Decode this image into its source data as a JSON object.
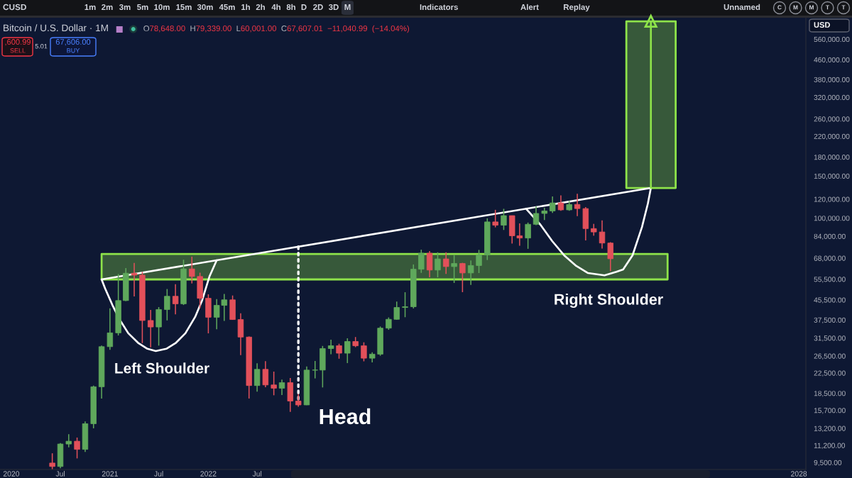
{
  "chart_data": {
    "type": "candlestick",
    "title": "Bitcoin / U.S. Dollar · 1M",
    "subtitle": "O78,648.00 H79,339.00 L60,001.00 C67,607.01 −11,040.99 (−14.04%)",
    "x": [
      "2020-06",
      "2020-07",
      "2020-08",
      "2020-09",
      "2020-10",
      "2020-11",
      "2020-12",
      "2021-01",
      "2021-02",
      "2021-03",
      "2021-04",
      "2021-05",
      "2021-06",
      "2021-07",
      "2021-08",
      "2021-09",
      "2021-10",
      "2021-11",
      "2021-12",
      "2022-01",
      "2022-02",
      "2022-03",
      "2022-04",
      "2022-05",
      "2022-06",
      "2022-07",
      "2022-08",
      "2022-09",
      "2022-10",
      "2022-11",
      "2022-12",
      "2023-01",
      "2023-02",
      "2023-03",
      "2023-04",
      "2023-05",
      "2023-06",
      "2023-07",
      "2023-08",
      "2023-09",
      "2023-10",
      "2023-11",
      "2023-12",
      "2024-01",
      "2024-02",
      "2024-03",
      "2024-04",
      "2024-05",
      "2024-06",
      "2024-07",
      "2024-08",
      "2024-09",
      "2024-10",
      "2024-11",
      "2024-12",
      "2025-01",
      "2025-02",
      "2025-03",
      "2025-04",
      "2025-05",
      "2025-06",
      "2025-07",
      "2025-08",
      "2025-09",
      "2025-10",
      "2025-11",
      "2025-12",
      "2026-01",
      "2026-02"
    ],
    "ohlc": [
      [
        9450,
        10380,
        8910,
        9140
      ],
      [
        9140,
        11450,
        8980,
        11350
      ],
      [
        11350,
        12480,
        10990,
        11660
      ],
      [
        11660,
        12080,
        9880,
        10780
      ],
      [
        10780,
        14100,
        10520,
        13800
      ],
      [
        13800,
        19920,
        13200,
        19700
      ],
      [
        19700,
        29300,
        17570,
        28990
      ],
      [
        28990,
        41950,
        28130,
        33110
      ],
      [
        33110,
        58350,
        32300,
        45200
      ],
      [
        45200,
        61780,
        44950,
        58800
      ],
      [
        58800,
        64900,
        47000,
        57750
      ],
      [
        57750,
        59600,
        30000,
        37300
      ],
      [
        37300,
        41330,
        28800,
        35040
      ],
      [
        35040,
        42450,
        29280,
        41460
      ],
      [
        41460,
        50500,
        37330,
        47100
      ],
      [
        47100,
        52920,
        39600,
        43800
      ],
      [
        43800,
        67000,
        43300,
        61300
      ],
      [
        61300,
        69000,
        53300,
        57000
      ],
      [
        57000,
        59100,
        42000,
        46200
      ],
      [
        46200,
        47990,
        32950,
        38480
      ],
      [
        38480,
        45850,
        34300,
        43160
      ],
      [
        43160,
        48200,
        37160,
        45510
      ],
      [
        45510,
        47450,
        37580,
        37640
      ],
      [
        37640,
        40000,
        26700,
        31800
      ],
      [
        31800,
        31990,
        17590,
        19930
      ],
      [
        19930,
        24700,
        18780,
        23300
      ],
      [
        23300,
        25200,
        19600,
        20050
      ],
      [
        20050,
        22800,
        18150,
        19430
      ],
      [
        19430,
        21100,
        18200,
        20490
      ],
      [
        20490,
        21450,
        15480,
        17170
      ],
      [
        17170,
        18390,
        16260,
        16540
      ],
      [
        16540,
        23960,
        16500,
        23130
      ],
      [
        23130,
        25250,
        21350,
        23140
      ],
      [
        23140,
        29190,
        19570,
        28470
      ],
      [
        28470,
        31000,
        26940,
        29250
      ],
      [
        29250,
        29820,
        25810,
        27220
      ],
      [
        27220,
        31430,
        24750,
        30470
      ],
      [
        30470,
        31810,
        28860,
        29230
      ],
      [
        29230,
        30230,
        25170,
        25940
      ],
      [
        25940,
        27480,
        24900,
        26970
      ],
      [
        26970,
        35200,
        26560,
        34650
      ],
      [
        34650,
        38420,
        34100,
        37720
      ],
      [
        37720,
        44730,
        37600,
        42280
      ],
      [
        42280,
        48970,
        38500,
        42580
      ],
      [
        42580,
        64000,
        41880,
        61130
      ],
      [
        61130,
        73780,
        59000,
        71330
      ],
      [
        71330,
        72800,
        56500,
        60640
      ],
      [
        60640,
        71950,
        56550,
        67490
      ],
      [
        67490,
        71980,
        58400,
        62700
      ],
      [
        62700,
        70000,
        53550,
        64620
      ],
      [
        64620,
        65000,
        49000,
        58970
      ],
      [
        58970,
        66500,
        52550,
        63330
      ],
      [
        63330,
        73620,
        58900,
        70220
      ],
      [
        70220,
        99800,
        66800,
        96400
      ],
      [
        96400,
        108300,
        91500,
        93400
      ],
      [
        93400,
        109350,
        89200,
        102400
      ],
      [
        102400,
        102500,
        78250,
        84350
      ],
      [
        84350,
        95000,
        76600,
        82550
      ],
      [
        82550,
        95800,
        74400,
        94200
      ],
      [
        94200,
        111900,
        93400,
        104600
      ],
      [
        104600,
        110500,
        98200,
        107150
      ],
      [
        107150,
        123200,
        105100,
        115750
      ],
      [
        115750,
        124500,
        107300,
        108250
      ],
      [
        108250,
        117900,
        107300,
        114050
      ],
      [
        114050,
        126300,
        102000,
        109600
      ],
      [
        109600,
        111200,
        80600,
        90400
      ],
      [
        90400,
        94600,
        84400,
        87500
      ],
      [
        87500,
        97900,
        74600,
        78650
      ],
      [
        78648,
        79339,
        60001,
        67607.01
      ]
    ],
    "colors": [
      "#e2505a",
      "#5fa85c",
      "#5fa85c",
      "#e2505a",
      "#5fa85c",
      "#5fa85c",
      "#5fa85c",
      "#5fa85c",
      "#5fa85c",
      "#5fa85c",
      "#e2505a",
      "#e2505a",
      "#e2505a",
      "#5fa85c",
      "#5fa85c",
      "#e2505a",
      "#5fa85c",
      "#e2505a",
      "#e2505a",
      "#e2505a",
      "#5fa85c",
      "#5fa85c",
      "#e2505a",
      "#e2505a",
      "#e2505a",
      "#5fa85c",
      "#e2505a",
      "#e2505a",
      "#5fa85c",
      "#e2505a",
      "#e2505a",
      "#5fa85c",
      "#5fa85c",
      "#5fa85c",
      "#5fa85c",
      "#e2505a",
      "#5fa85c",
      "#e2505a",
      "#e2505a",
      "#5fa85c",
      "#5fa85c",
      "#5fa85c",
      "#5fa85c",
      "#5fa85c",
      "#5fa85c",
      "#5fa85c",
      "#e2505a",
      "#5fa85c",
      "#e2505a",
      "#5fa85c",
      "#e2505a",
      "#5fa85c",
      "#5fa85c",
      "#5fa85c",
      "#e2505a",
      "#5fa85c",
      "#e2505a",
      "#e2505a",
      "#5fa85c",
      "#5fa85c",
      "#5fa85c",
      "#5fa85c",
      "#e2505a",
      "#5fa85c",
      "#e2505a",
      "#e2505a",
      "#e2505a",
      "#e2505a",
      "#e2505a"
    ],
    "xlim": [
      "2019-11-20",
      "2028-01-27"
    ],
    "xticks": [
      {
        "value": "2020-01",
        "label": "2020"
      },
      {
        "value": "2020-07",
        "label": "Jul"
      },
      {
        "value": "2021-01",
        "label": "2021"
      },
      {
        "value": "2021-07",
        "label": "Jul"
      },
      {
        "value": "2022-01",
        "label": "2022"
      },
      {
        "value": "2022-07",
        "label": "Jul"
      },
      {
        "value": "2028-01",
        "label": "2028"
      }
    ],
    "ylim": [
      8880,
      689000
    ],
    "yticks": [
      {
        "value": 9500,
        "label": "9,500.00"
      },
      {
        "value": 11200,
        "label": "11,200.00"
      },
      {
        "value": 13200,
        "label": "13,200.00"
      },
      {
        "value": 15700,
        "label": "15,700.00"
      },
      {
        "value": 18500,
        "label": "18,500.00"
      },
      {
        "value": 22500,
        "label": "22,500.00"
      },
      {
        "value": 26500,
        "label": "26,500.00"
      },
      {
        "value": 31500,
        "label": "31,500.00"
      },
      {
        "value": 37500,
        "label": "37,500.00"
      },
      {
        "value": 45500,
        "label": "45,500.00"
      },
      {
        "value": 55500,
        "label": "55,500.00"
      },
      {
        "value": 68000,
        "label": "68,000.00"
      },
      {
        "value": 84000,
        "label": "84,000.00"
      },
      {
        "value": 100000,
        "label": "100,000.00"
      },
      {
        "value": 120000,
        "label": "120,000.00"
      },
      {
        "value": 150000,
        "label": "150,000.00"
      },
      {
        "value": 180000,
        "label": "180,000.00"
      },
      {
        "value": 220000,
        "label": "220,000.00"
      },
      {
        "value": 260000,
        "label": "260,000.00"
      },
      {
        "value": 320000,
        "label": "320,000.00"
      },
      {
        "value": 380000,
        "label": "380,000.00"
      },
      {
        "value": 460000,
        "label": "460,000.00"
      },
      {
        "value": 560000,
        "label": "560,000.00"
      }
    ],
    "log": true,
    "series": [
      {
        "type": "line",
        "x": [
          "2020-12",
          "2026-09"
        ],
        "values": [
          null,
          null
        ],
        "lower": [
          55400,
          55400
        ],
        "upper": [
          70800,
          70800
        ],
        "color": "#8ee34a"
      },
      {
        "type": "line",
        "x": [
          "2026-04",
          "2026-10"
        ],
        "values": [
          null,
          null
        ],
        "lower": [
          133700,
          133700
        ],
        "upper": [
          665800,
          665800
        ],
        "color": "#8ee34a"
      },
      {
        "type": "line",
        "x": [
          "2020-12",
          "2026-07"
        ],
        "values": [
          55400,
          133700
        ],
        "color": "#ffffff"
      },
      {
        "type": "line",
        "x": [
          "2020-12-01",
          "2020-12-14",
          "2021-01-10",
          "2021-02-05",
          "2021-03-10",
          "2021-04-15",
          "2021-05-20",
          "2021-06-20",
          "2021-07-29",
          "2021-09-03",
          "2021-10-08",
          "2021-11-13",
          "2021-12-09",
          "2022-01-05",
          "2022-02-01"
        ],
        "values": [
          55400,
          50800,
          43300,
          37800,
          33000,
          30100,
          28400,
          27800,
          28400,
          30100,
          33000,
          38600,
          45300,
          56900,
          66600
        ],
        "color": "#ffffff"
      },
      {
        "type": "line",
        "x": [
          "2025-03-25",
          "2025-05-17",
          "2025-06-30",
          "2025-08-13",
          "2025-09-27",
          "2025-11-10",
          "2026-01-10",
          "2026-02-23",
          "2026-03-20",
          "2026-04-24",
          "2026-05-29",
          "2026-06-20",
          "2026-07-01"
        ],
        "values": [
          109500,
          93900,
          80100,
          69900,
          63100,
          58900,
          57600,
          59600,
          61000,
          69900,
          91800,
          115300,
          133700
        ],
        "color": "#ffffff"
      },
      {
        "type": "line",
        "x": [
          "2022-12",
          "2022-12"
        ],
        "values": [
          76000,
          17000
        ],
        "color": "#ffffff",
        "line_style": "dotted"
      },
      {
        "type": "line",
        "x": [
          "2026-07",
          "2026-07"
        ],
        "values": [
          133700,
          665800
        ],
        "color": "#8ee34a",
        "marker": "triangle"
      }
    ],
    "annotations": [
      "Left Shoulder",
      "Head",
      "Right Shoulder",
      "CUSD",
      "1m",
      "2m",
      "3m",
      "5m",
      "10m",
      "15m",
      "30m",
      "45m",
      "1h",
      "2h",
      "4h",
      "8h",
      "D",
      "2D",
      "3D",
      "M",
      "Indicators",
      "Alert",
      "Replay",
      "Unnamed",
      "C",
      "M",
      "M",
      "T",
      "T",
      "USD",
      ",600.99",
      "SELL",
      "5.01",
      "67,606.00",
      "BUY"
    ]
  }
}
